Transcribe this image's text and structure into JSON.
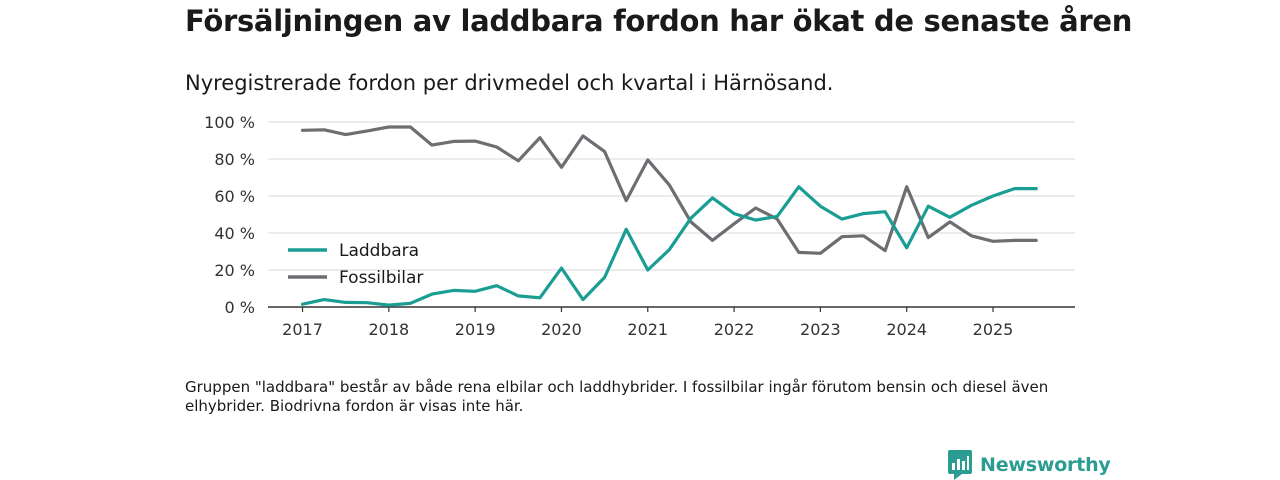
{
  "title": "Försäljningen av laddbara fordon har ökat de senaste åren",
  "subtitle": "Nyregistrerade fordon per drivmedel och kvartal i Härnösand.",
  "footnote": "Gruppen \"laddbara\" består av både rena elbilar och laddhybrider. I fossilbilar ingår förutom bensin och diesel även elhybrider. Biodrivna fordon är visas inte här.",
  "brand": {
    "name": "Newsworthy",
    "icon": "newsworthy-logo-icon"
  },
  "colors": {
    "laddbara": "#1a9e94",
    "fossil": "#6d6e72",
    "grid": "#d9d9d9",
    "axis": "#333333",
    "brand": "#2b9c91"
  },
  "chart_data": {
    "type": "line",
    "title": "Försäljningen av laddbara fordon har ökat de senaste åren",
    "xlabel": "",
    "ylabel": "",
    "x": [
      2017.0,
      2017.25,
      2017.5,
      2017.75,
      2018.0,
      2018.25,
      2018.5,
      2018.75,
      2019.0,
      2019.25,
      2019.5,
      2019.75,
      2020.0,
      2020.25,
      2020.5,
      2020.75,
      2021.0,
      2021.25,
      2021.5,
      2021.75,
      2022.0,
      2022.25,
      2022.5,
      2022.75,
      2023.0,
      2023.25,
      2023.5,
      2023.75,
      2024.0,
      2024.25,
      2024.5,
      2024.75,
      2025.0,
      2025.25,
      2025.5
    ],
    "xlim": [
      2016.6,
      2025.95
    ],
    "ylim": [
      0,
      100
    ],
    "x_ticks": [
      2017,
      2018,
      2019,
      2020,
      2021,
      2022,
      2023,
      2024,
      2025
    ],
    "x_tick_labels": [
      "2017",
      "2018",
      "2019",
      "2020",
      "2021",
      "2022",
      "2023",
      "2024",
      "2025"
    ],
    "y_ticks": [
      0,
      20,
      40,
      60,
      80,
      100
    ],
    "y_tick_labels": [
      "0 %",
      "20 %",
      "40 %",
      "60 %",
      "80 %",
      "100 %"
    ],
    "grid": true,
    "legend_position": "left-middle",
    "series": [
      {
        "name": "Laddbara",
        "color_key": "laddbara",
        "values": [
          1.5,
          4,
          2.5,
          2.3,
          1,
          2,
          7,
          9,
          8.5,
          11.5,
          6,
          5,
          21,
          4,
          16,
          42,
          20,
          31,
          48,
          59,
          50.5,
          47,
          49,
          65,
          54.5,
          47.5,
          50.5,
          51.5,
          32,
          54.5,
          48.5,
          55,
          60,
          64,
          64
        ]
      },
      {
        "name": "Fossilbilar",
        "color_key": "fossil",
        "values": [
          95.5,
          95.8,
          93.2,
          95.2,
          97.3,
          97.3,
          87.5,
          89.5,
          89.7,
          86.5,
          79,
          91.5,
          75.5,
          92.5,
          84,
          57.5,
          79.5,
          66,
          46,
          36,
          45,
          53.5,
          47.5,
          29.5,
          29,
          38,
          38.5,
          30.5,
          65,
          37.5,
          46,
          38.5,
          35.5,
          36,
          36
        ]
      }
    ]
  }
}
